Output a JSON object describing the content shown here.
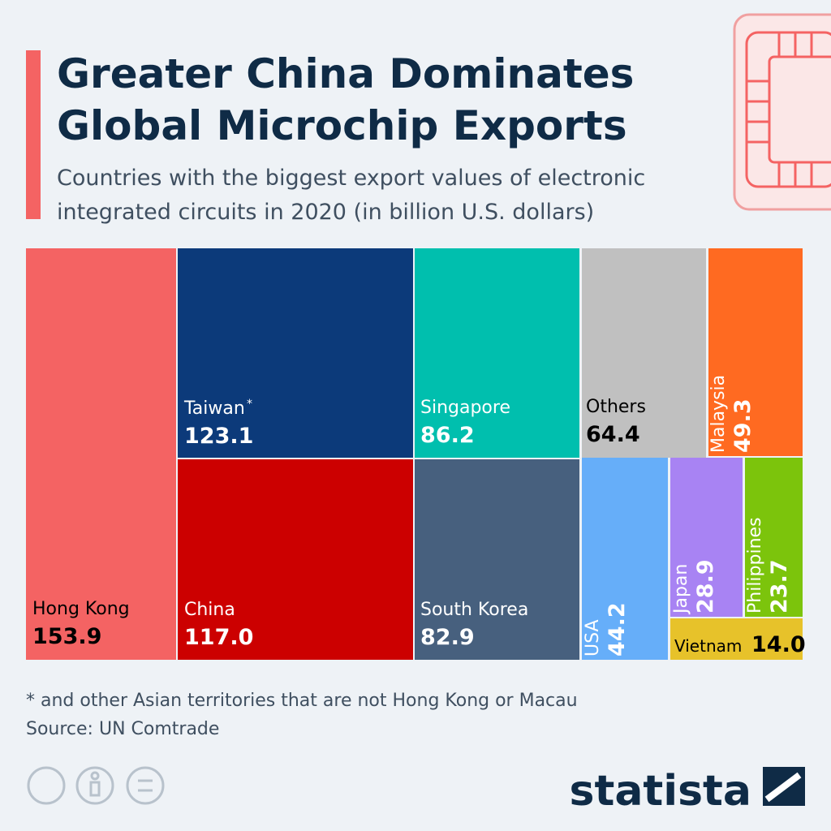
{
  "chart_data": {
    "type": "treemap",
    "title": [
      "Greater China Dominates",
      "Global Microchip Exports"
    ],
    "subtitle": [
      "Countries with the biggest export values of electronic",
      "integrated circuits in 2020 (in billion U.S. dollars)"
    ],
    "categories": [
      "Hong Kong",
      "Taiwan",
      "China",
      "Singapore",
      "South Korea",
      "Others",
      "Malaysia",
      "USA",
      "Japan",
      "Philippines",
      "Vietnam"
    ],
    "values": [
      153.9,
      123.1,
      117.0,
      86.2,
      82.9,
      64.4,
      49.3,
      44.2,
      28.9,
      23.7,
      14.0
    ],
    "value_labels": [
      "153.9",
      "123.1",
      "117.0",
      "86.2",
      "82.9",
      "64.4",
      "49.3",
      "44.2",
      "28.9",
      "23.7",
      "14.0"
    ],
    "colors": [
      "#f46363",
      "#0c3a7a",
      "#cc0000",
      "#00bfae",
      "#47607e",
      "#c0c0c0",
      "#ff6a21",
      "#66aef9",
      "#a883f3",
      "#7cc40c",
      "#e7c22a"
    ],
    "footnote_marker": "*",
    "footnote": "* and other Asian territories that are not Hong Kong or Macau",
    "source": "Source: UN Comtrade",
    "brand": "statista"
  }
}
